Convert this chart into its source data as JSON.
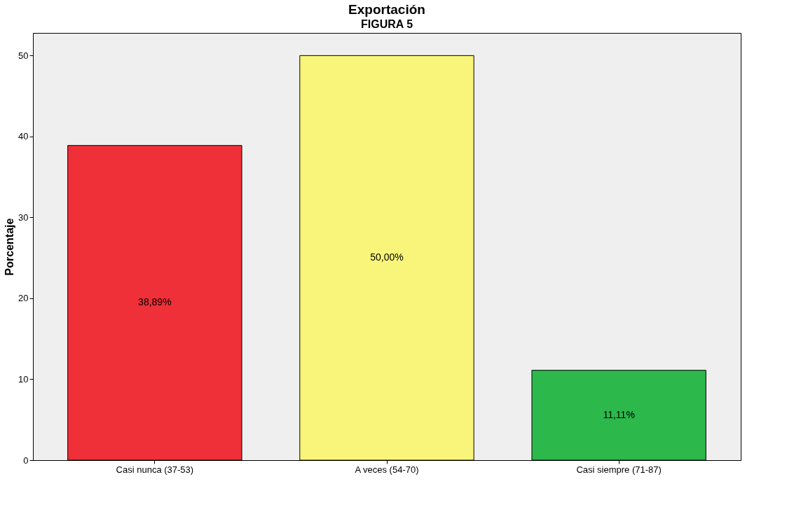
{
  "chart_data": {
    "type": "bar",
    "title": "Exportación",
    "ylabel": "Porcentaje",
    "annotations": [
      "FIGURA 5"
    ],
    "categories": [
      "Casi nunca (37-53)",
      "A veces (54-70)",
      "Casi siempre (71-87)"
    ],
    "values": [
      38.89,
      50.0,
      11.11
    ],
    "colors": [
      "#ef3038",
      "#f8f57a",
      "#2db84b"
    ],
    "value_labels": [
      "38,89%",
      "50,00%",
      "11,11%"
    ],
    "ylim": [
      0,
      52.8
    ],
    "yticks": [
      0,
      10,
      20,
      30,
      40,
      50
    ],
    "grid": false,
    "legend": false
  }
}
